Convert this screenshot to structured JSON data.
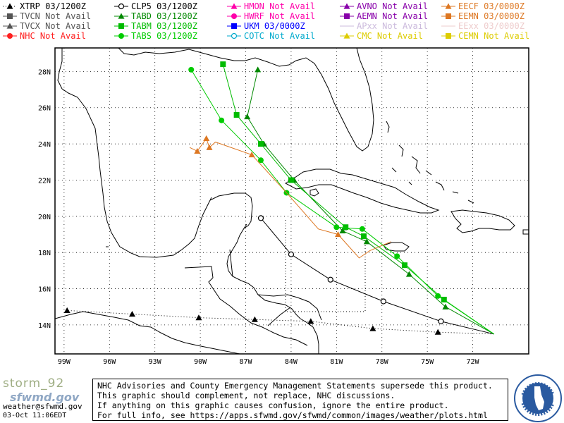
{
  "legend": [
    {
      "label": "XTRP",
      "status": "03/1200Z",
      "color": "#000000",
      "marker": "triangle",
      "line": "dotted",
      "col": 0,
      "row": 0
    },
    {
      "label": "TVCN",
      "status": "Not Avail",
      "color": "#555555",
      "marker": "square",
      "line": "solid",
      "col": 0,
      "row": 1
    },
    {
      "label": "TVCX",
      "status": "Not Avail",
      "color": "#555555",
      "marker": "triangle",
      "line": "solid",
      "col": 0,
      "row": 2
    },
    {
      "label": "NHC",
      "status": "Not Avail",
      "color": "#ff2020",
      "marker": "circle",
      "line": "solid",
      "col": 0,
      "row": 3
    },
    {
      "label": "CLP5",
      "status": "03/1200Z",
      "color": "#000000",
      "marker": "open-circle",
      "line": "solid",
      "col": 1,
      "row": 0
    },
    {
      "label": "TABD",
      "status": "03/1200Z",
      "color": "#008800",
      "marker": "triangle",
      "line": "solid",
      "col": 1,
      "row": 1
    },
    {
      "label": "TABM",
      "status": "03/1200Z",
      "color": "#00bb00",
      "marker": "square",
      "line": "solid",
      "col": 1,
      "row": 2
    },
    {
      "label": "TABS",
      "status": "03/1200Z",
      "color": "#00cc00",
      "marker": "circle",
      "line": "solid",
      "col": 1,
      "row": 3
    },
    {
      "label": "HMON",
      "status": "Not Avail",
      "color": "#ff00aa",
      "marker": "triangle",
      "line": "solid",
      "col": 2,
      "row": 0
    },
    {
      "label": "HWRF",
      "status": "Not Avail",
      "color": "#ff00aa",
      "marker": "circle",
      "line": "solid",
      "col": 2,
      "row": 1
    },
    {
      "label": "UKM",
      "status": "03/0000Z",
      "color": "#0000ff",
      "marker": "square",
      "line": "solid",
      "col": 2,
      "row": 2
    },
    {
      "label": "COTC",
      "status": "Not Avail",
      "color": "#00aacc",
      "marker": "open-circle",
      "line": "solid",
      "col": 2,
      "row": 3
    },
    {
      "label": "AVNO",
      "status": "Not Avail",
      "color": "#8800aa",
      "marker": "triangle",
      "line": "solid",
      "col": 3,
      "row": 0
    },
    {
      "label": "AEMN",
      "status": "Not Avail",
      "color": "#8800aa",
      "marker": "square",
      "line": "solid",
      "col": 3,
      "row": 1
    },
    {
      "label": "APxx",
      "status": "Not Avail",
      "color": "#ccbbdd",
      "marker": "none",
      "line": "solid",
      "col": 3,
      "row": 2
    },
    {
      "label": "CMC",
      "status": "Not Avail",
      "color": "#ddcc00",
      "marker": "triangle",
      "line": "solid",
      "col": 3,
      "row": 3
    },
    {
      "label": "EECF",
      "status": "03/0000Z",
      "color": "#dd7722",
      "marker": "triangle",
      "line": "solid",
      "col": 4,
      "row": 0
    },
    {
      "label": "EEMN",
      "status": "03/0000Z",
      "color": "#dd7722",
      "marker": "square",
      "line": "solid",
      "col": 4,
      "row": 1
    },
    {
      "label": "EExx",
      "status": "03/0000Z",
      "color": "#eecccc",
      "marker": "none",
      "line": "solid",
      "col": 4,
      "row": 2
    },
    {
      "label": "CEMN",
      "status": "Not Avail",
      "color": "#ddcc00",
      "marker": "square",
      "line": "solid",
      "col": 4,
      "row": 3
    }
  ],
  "map": {
    "lon_range": [
      -99.6,
      -68.3
    ],
    "lat_range": [
      12.4,
      29.3
    ],
    "lat_ticks": [
      {
        "v": 14,
        "label": "14N"
      },
      {
        "v": 16,
        "label": "16N"
      },
      {
        "v": 18,
        "label": "18N"
      },
      {
        "v": 20,
        "label": "20N"
      },
      {
        "v": 22,
        "label": "22N"
      },
      {
        "v": 24,
        "label": "24N"
      },
      {
        "v": 26,
        "label": "26N"
      },
      {
        "v": 28,
        "label": "28N"
      }
    ],
    "lon_ticks": [
      {
        "v": -99,
        "label": "99W"
      },
      {
        "v": -96,
        "label": "96W"
      },
      {
        "v": -93,
        "label": "93W"
      },
      {
        "v": -90,
        "label": "90W"
      },
      {
        "v": -87,
        "label": "87W"
      },
      {
        "v": -84,
        "label": "84W"
      },
      {
        "v": -81,
        "label": "81W"
      },
      {
        "v": -78,
        "label": "78W"
      },
      {
        "v": -75,
        "label": "75W"
      },
      {
        "v": -72,
        "label": "72W"
      }
    ],
    "tracks": [
      {
        "model": "XTRP",
        "color": "#000000",
        "dash": "1,3",
        "marker": "triangle",
        "points": [
          [
            -70.6,
            13.5
          ],
          [
            -74.3,
            13.6
          ],
          [
            -78.6,
            13.8
          ],
          [
            -82.7,
            14.2
          ],
          [
            -86.4,
            14.3
          ],
          [
            -90.1,
            14.4
          ],
          [
            -94.5,
            14.6
          ],
          [
            -98.8,
            14.8
          ]
        ],
        "markers_from": 1
      },
      {
        "model": "CLP5",
        "color": "#000000",
        "dash": "",
        "marker": "open-circle",
        "points": [
          [
            -70.6,
            13.5
          ],
          [
            -74.1,
            14.2
          ],
          [
            -77.9,
            15.3
          ],
          [
            -81.4,
            16.5
          ],
          [
            -84.0,
            17.9
          ],
          [
            -86.0,
            19.9
          ]
        ],
        "markers_from": 1
      },
      {
        "model": "TABD",
        "color": "#008800",
        "dash": "",
        "marker": "triangle",
        "points": [
          [
            -70.6,
            13.5
          ],
          [
            -73.8,
            15.0
          ],
          [
            -76.2,
            16.8
          ],
          [
            -79.0,
            18.6
          ],
          [
            -80.6,
            19.2
          ],
          [
            -83.8,
            22.0
          ],
          [
            -85.8,
            24.0
          ],
          [
            -86.9,
            25.5
          ],
          [
            -86.2,
            28.1
          ]
        ],
        "markers_from": 1
      },
      {
        "model": "TABM",
        "color": "#00bb00",
        "dash": "",
        "marker": "square",
        "points": [
          [
            -70.6,
            13.5
          ],
          [
            -73.9,
            15.4
          ],
          [
            -76.5,
            17.3
          ],
          [
            -79.2,
            18.9
          ],
          [
            -80.4,
            19.4
          ],
          [
            -84.0,
            22.0
          ],
          [
            -86.0,
            24.0
          ],
          [
            -87.6,
            25.6
          ],
          [
            -88.5,
            28.4
          ]
        ],
        "markers_from": 1
      },
      {
        "model": "TABS",
        "color": "#00cc00",
        "dash": "",
        "marker": "circle",
        "points": [
          [
            -70.6,
            13.5
          ],
          [
            -74.3,
            15.6
          ],
          [
            -77.0,
            17.8
          ],
          [
            -79.3,
            19.3
          ],
          [
            -81.0,
            19.4
          ],
          [
            -84.3,
            21.3
          ],
          [
            -86.0,
            23.1
          ],
          [
            -88.6,
            25.3
          ],
          [
            -90.6,
            28.1
          ]
        ],
        "markers_from": 1
      },
      {
        "model": "EECF",
        "color": "#dd7722",
        "dash": "",
        "marker": "triangle",
        "points": [
          [
            -77.4,
            18.6
          ],
          [
            -78.8,
            18.1
          ],
          [
            -79.5,
            17.7
          ],
          [
            -80.9,
            19.0
          ],
          [
            -82.2,
            19.3
          ],
          [
            -84.3,
            21.3
          ],
          [
            -86.6,
            23.4
          ],
          [
            -89.0,
            24.1
          ],
          [
            -89.4,
            23.8
          ],
          [
            -89.6,
            24.3
          ],
          [
            -90.2,
            23.6
          ],
          [
            -90.7,
            23.8
          ]
        ],
        "markers_at": [
          3,
          6,
          8,
          9,
          10
        ]
      }
    ]
  },
  "branding": {
    "storm_name": "storm_92",
    "sfwmd": "sfwmd.gov",
    "email": "weather@sfwmd.gov",
    "timestamp": "03-Oct 11:06EDT"
  },
  "notice": {
    "line1": "NHC Advisories and County Emergency Management Statements supersede this product.",
    "line2": "This graphic should complement, not replace, NHC discussions.",
    "line3": "If anything on this graphic causes confusion, ignore the entire product.",
    "line4": "For full info, see  https://apps.sfwmd.gov/sfwmd/common/images/weather/plots.html"
  }
}
